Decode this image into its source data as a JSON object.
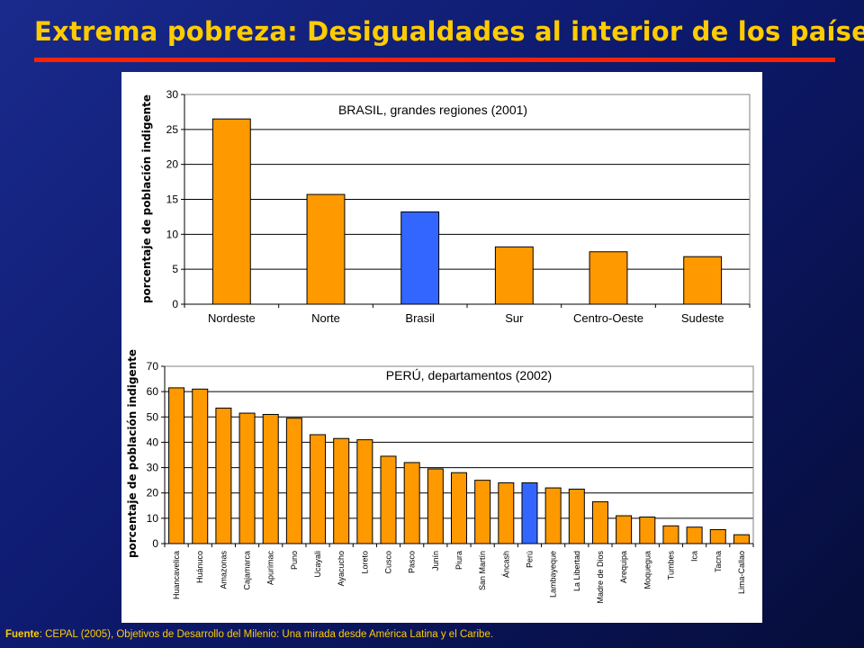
{
  "slide": {
    "title": "Extrema pobreza: Desigualdades al interior de los países",
    "source_label": "Fuente",
    "source_text": ": CEPAL (2005), Objetivos de Desarrollo del Milenio: Una mirada desde América Latina y el Caribe."
  },
  "colors": {
    "title": "#ffcc00",
    "rule": "#ff2200",
    "bar_default": "#ff9900",
    "bar_highlight": "#3366ff",
    "grid": "#000000"
  },
  "chart_data": [
    {
      "type": "bar",
      "title": "BRASIL, grandes regiones (2001)",
      "xlabel": "",
      "ylabel": "porcentaje de población indigente",
      "ylim": [
        0,
        30
      ],
      "yticks": [
        0,
        5,
        10,
        15,
        20,
        25,
        30
      ],
      "categories": [
        "Nordeste",
        "Norte",
        "Brasil",
        "Sur",
        "Centro-Oeste",
        "Sudeste"
      ],
      "values": [
        26.5,
        15.7,
        13.2,
        8.2,
        7.5,
        6.8
      ],
      "highlight": "Brasil",
      "grid": true
    },
    {
      "type": "bar",
      "title": "PERÚ, departamentos (2002)",
      "xlabel": "",
      "ylabel": "porcentaje de población indigente",
      "ylim": [
        0,
        70
      ],
      "yticks": [
        0,
        10,
        20,
        30,
        40,
        50,
        60,
        70
      ],
      "categories": [
        "Huancavelica",
        "Huánuco",
        "Amazonas",
        "Cajamarca",
        "Apurimac",
        "Puno",
        "Ucayali",
        "Ayacucho",
        "Loreto",
        "Cusco",
        "Pasco",
        "Junín",
        "Piura",
        "San Martín",
        "Áncash",
        "Perú",
        "Lambayeque",
        "La Libertad",
        "Madre de Dios",
        "Arequipa",
        "Moquegua",
        "Tumbes",
        "Ica",
        "Tacna",
        "Lima-Callao"
      ],
      "values": [
        61.5,
        61,
        53.5,
        51.5,
        51,
        49.5,
        43,
        41.5,
        41,
        34.5,
        32,
        29.5,
        28,
        25,
        24,
        24,
        22,
        21.5,
        16.5,
        11,
        10.5,
        7,
        6.5,
        5.5,
        3.5
      ],
      "highlight": "Perú",
      "grid": true
    }
  ]
}
